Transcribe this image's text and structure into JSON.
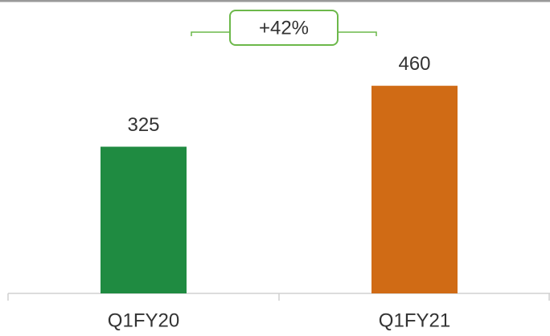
{
  "chart_data": {
    "type": "bar",
    "categories": [
      "Q1FY20",
      "Q1FY21"
    ],
    "values": [
      325,
      460
    ],
    "colors": [
      "#1f8b41",
      "#d06b15"
    ],
    "ylim": [
      0,
      650
    ],
    "annotation": "+42%"
  }
}
